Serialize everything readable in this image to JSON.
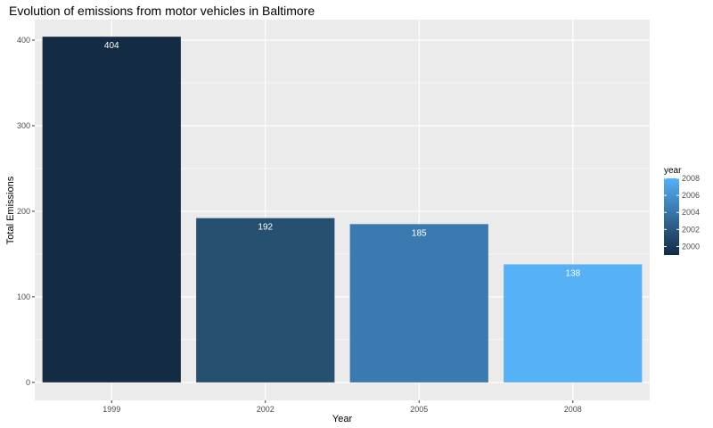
{
  "chart_data": {
    "type": "bar",
    "title": "Evolution of emissions from motor vehicles in Baltimore",
    "xlabel": "Year",
    "ylabel": "Total Emissions",
    "categories": [
      "1999",
      "2002",
      "2005",
      "2008"
    ],
    "values": [
      404,
      192,
      185,
      138
    ],
    "data_labels": [
      "404",
      "192",
      "185",
      "138"
    ],
    "ylim": [
      -21,
      424
    ],
    "yticks": [
      0,
      100,
      200,
      300,
      400
    ],
    "ytick_labels": [
      "0",
      "100",
      "200",
      "300",
      "400"
    ],
    "grid": true,
    "legend": {
      "title": "year",
      "position": "right",
      "type": "colorbar",
      "range": [
        1999,
        2008
      ],
      "ticks": [
        2000,
        2002,
        2004,
        2006,
        2008
      ],
      "tick_labels": [
        "2000",
        "2002",
        "2004",
        "2006",
        "2008"
      ],
      "color_low": "#132B43",
      "color_high": "#56B1F7"
    },
    "bar_colors": [
      "#132B43",
      "#25506F",
      "#3A7AB0",
      "#56B1F7"
    ],
    "panel_background": "#EBEBEB",
    "grid_color": "#FFFFFF"
  }
}
